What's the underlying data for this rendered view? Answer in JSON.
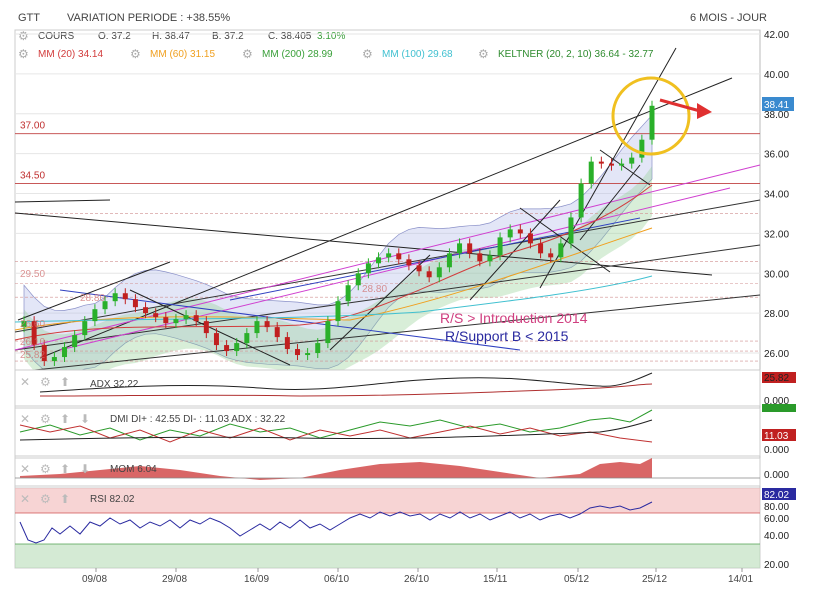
{
  "header": {
    "ticker": "GTT",
    "variation_label": "VARIATION PERIODE : +38.55%",
    "period_label": "6 MOIS - JOUR"
  },
  "quote": {
    "label": "COURS",
    "open": "O: 37.2",
    "high": "H: 38.47",
    "low": "B: 37.2",
    "close": "C: 38.405",
    "change": "3.10%"
  },
  "indicators": [
    {
      "label": "MM (20)",
      "value": "34.14",
      "color": "#d23c3c"
    },
    {
      "label": "MM (60)",
      "value": "31.15",
      "color": "#f0a020"
    },
    {
      "label": "MM (200)",
      "value": "28.99",
      "color": "#3aa03a"
    },
    {
      "label": "MM (100)",
      "value": "29.68",
      "color": "#40c0d0"
    },
    {
      "label": "KELTNER (20, 2, 10)",
      "value": "36.64 - 32.77",
      "color": "#2e8b2e"
    }
  ],
  "price_axis": {
    "ticks": [
      "42.00",
      "40.00",
      "38.00",
      "36.00",
      "34.00",
      "32.00",
      "30.00",
      "28.00",
      "26.00"
    ],
    "last_price": "38.41"
  },
  "levels": [
    {
      "label": "37.00",
      "value": 37.0
    },
    {
      "label": "34.50",
      "value": 34.5
    }
  ],
  "faded_labels": [
    "29.50",
    "28.80",
    "28.80",
    "26.60",
    "26.10",
    "25.82"
  ],
  "annotations": {
    "line1": "R/S > Introduction 2014",
    "line2": "R/Support B < 2015"
  },
  "panels": {
    "adx": {
      "label": "ADX",
      "value": "32.22",
      "axis_value": "25.82",
      "zero": "0.000"
    },
    "dmi": {
      "label": "DMI DI+ : 42.55 DI- : 11.03 ADX : 32.22",
      "axis_value": "11.03",
      "zero": "0.000"
    },
    "mom": {
      "label": "MOM",
      "value": "6.04",
      "zero": "0.000"
    },
    "rsi": {
      "label": "RSI",
      "value": "82.02",
      "axis_value": "82.02",
      "ticks": [
        "80.00",
        "60.00",
        "40.00",
        "20.00"
      ]
    }
  },
  "x_axis": {
    "labels": [
      "09/08",
      "29/08",
      "16/09",
      "06/10",
      "26/10",
      "15/11",
      "05/12",
      "25/12",
      "14/01"
    ]
  },
  "chart_data": {
    "type": "line",
    "title": "GTT",
    "xlabel": "",
    "ylabel": "",
    "ylim": [
      25.3,
      42.0
    ],
    "x_ticks": [
      "09/08",
      "29/08",
      "16/09",
      "06/10",
      "26/10",
      "15/11",
      "05/12",
      "25/12",
      "14/01"
    ],
    "series": [
      {
        "name": "COURS",
        "values": [
          27.6,
          26.4,
          25.6,
          25.8,
          26.3,
          26.9,
          27.6,
          28.2,
          28.6,
          29.0,
          28.7,
          28.3,
          28.0,
          27.8,
          27.5,
          27.7,
          27.9,
          27.6,
          27.0,
          26.4,
          26.1,
          26.5,
          27.0,
          27.6,
          27.3,
          26.8,
          26.2,
          25.9,
          26.0,
          26.5,
          27.6,
          28.6,
          29.4,
          30.0,
          30.5,
          30.8,
          31.0,
          30.7,
          30.4,
          30.1,
          29.8,
          30.3,
          31.0,
          31.5,
          31.0,
          30.6,
          30.9,
          31.8,
          32.2,
          32.0,
          31.5,
          31.0,
          30.8,
          31.5,
          32.8,
          34.5,
          35.6,
          35.5,
          35.4,
          35.5,
          35.8,
          36.7,
          38.4
        ]
      }
    ],
    "levels": [
      37.0,
      34.5
    ],
    "rsi": {
      "last": 82.02,
      "ylim": [
        0,
        100
      ]
    },
    "grid": true,
    "legend": "top-left"
  }
}
